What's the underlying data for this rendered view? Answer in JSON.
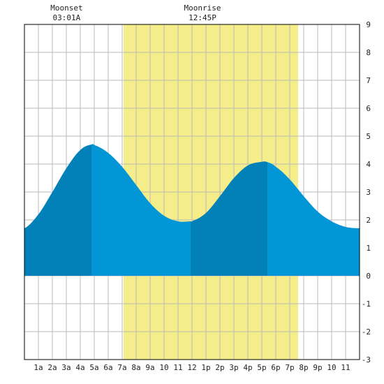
{
  "chart_data": {
    "type": "area",
    "title": "",
    "xlabel": "",
    "ylabel": "",
    "x_ticks": [
      "1a",
      "2a",
      "3a",
      "4a",
      "5a",
      "6a",
      "7a",
      "8a",
      "9a",
      "10",
      "11",
      "12",
      "1p",
      "2p",
      "3p",
      "4p",
      "5p",
      "6p",
      "7p",
      "8p",
      "9p",
      "10",
      "11"
    ],
    "y_ticks": [
      "9",
      "8",
      "7",
      "6",
      "5",
      "4",
      "3",
      "2",
      "1",
      "0",
      "-1",
      "-2",
      "-3"
    ],
    "xlim": [
      0,
      24
    ],
    "ylim": [
      -3,
      9
    ],
    "grid": true,
    "events": [
      {
        "label": "Moonset",
        "time": "03:01A",
        "hour": 3.02
      },
      {
        "label": "Moonrise",
        "time": "12:45P",
        "hour": 12.75
      }
    ],
    "daylight_hours": [
      7.1,
      19.6
    ],
    "series": [
      {
        "x": [
          0,
          1,
          2,
          3,
          4,
          4.8,
          5,
          6,
          7,
          8,
          9,
          10,
          11,
          11.9,
          12,
          13,
          14,
          15,
          16,
          17,
          17.4,
          18,
          19,
          20,
          21,
          22,
          23,
          24
        ],
        "values": [
          1.7,
          2.2,
          3.0,
          3.85,
          4.5,
          4.7,
          4.68,
          4.4,
          3.9,
          3.25,
          2.6,
          2.15,
          1.95,
          1.95,
          1.96,
          2.25,
          2.85,
          3.5,
          3.95,
          4.08,
          4.07,
          3.9,
          3.45,
          2.85,
          2.3,
          1.95,
          1.75,
          1.7
        ]
      }
    ],
    "tide_phases": [
      [
        0,
        4.8
      ],
      [
        4.8,
        11.9
      ],
      [
        11.9,
        17.4
      ],
      [
        17.4,
        24
      ]
    ],
    "colors": {
      "daylight": "#f5ec8a",
      "tide_dark": "#0280b8",
      "tide_light": "#0296d6",
      "grid": "#bbbbbb",
      "frame": "#000000"
    }
  }
}
